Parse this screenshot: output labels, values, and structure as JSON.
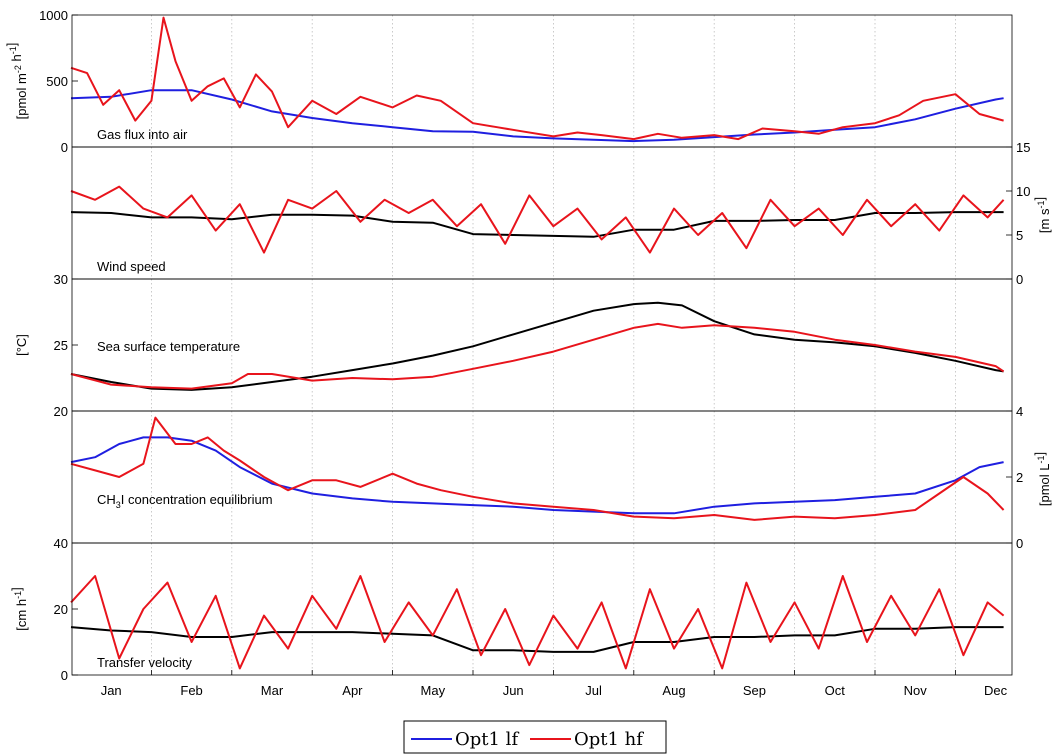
{
  "months": [
    "Jan",
    "Feb",
    "Mar",
    "Apr",
    "May",
    "Jun",
    "Jul",
    "Aug",
    "Sep",
    "Oct",
    "Nov",
    "Dec"
  ],
  "legend": {
    "lf": "Opt1 lf",
    "hf": "Opt1 hf"
  },
  "colors": {
    "lf": "#1f1fe0",
    "hf": "#e8141c",
    "black": "#000000"
  },
  "panels": [
    {
      "id": "gas-flux",
      "title": "Gas flux into air",
      "ylabel_left": "[pmol m-2 h-1]",
      "ylabel_right": "",
      "left_ticks": [
        "0",
        "500",
        "1000"
      ],
      "right_ticks": []
    },
    {
      "id": "wind-speed",
      "title": "Wind speed",
      "ylabel_left": "",
      "ylabel_right": "[m s-1]",
      "left_ticks": [],
      "right_ticks": [
        "0",
        "5",
        "10",
        "15"
      ]
    },
    {
      "id": "sst",
      "title": "Sea surface temperature",
      "ylabel_left": "[°C]",
      "ylabel_right": "",
      "left_ticks": [
        "20",
        "25",
        "30"
      ],
      "right_ticks": []
    },
    {
      "id": "ch3i",
      "title": "CH3I concentration equilibrium",
      "ylabel_left": "",
      "ylabel_right": "[pmol L-1]",
      "left_ticks": [],
      "right_ticks": [
        "0",
        "2",
        "4"
      ]
    },
    {
      "id": "transfer",
      "title": "Transfer velocity",
      "ylabel_left": "[cm h-1]",
      "ylabel_right": "",
      "left_ticks": [
        "0",
        "20",
        "40"
      ],
      "right_ticks": []
    }
  ],
  "chart_data": [
    {
      "type": "line",
      "title": "Gas flux into air",
      "ylabel": "[pmol m-2 h-1]",
      "ylim": [
        0,
        1000
      ],
      "x_unit": "month",
      "series": [
        {
          "name": "Opt1 lf",
          "color": "#1f1fe0",
          "x": [
            0.0,
            0.5,
            1.0,
            1.5,
            2.0,
            2.5,
            3.0,
            3.5,
            4.0,
            4.5,
            5.0,
            5.5,
            6.0,
            6.5,
            7.0,
            7.5,
            8.0,
            8.5,
            9.0,
            9.5,
            10.0,
            10.5,
            11.0,
            11.5,
            11.6
          ],
          "y": [
            370,
            380,
            430,
            430,
            360,
            270,
            220,
            180,
            150,
            120,
            115,
            80,
            65,
            55,
            45,
            55,
            75,
            95,
            110,
            130,
            150,
            210,
            290,
            360,
            370
          ]
        },
        {
          "name": "Opt1 hf",
          "color": "#e8141c",
          "x": [
            0.0,
            0.2,
            0.4,
            0.6,
            0.8,
            1.0,
            1.15,
            1.3,
            1.5,
            1.7,
            1.9,
            2.1,
            2.3,
            2.5,
            2.7,
            3.0,
            3.3,
            3.6,
            4.0,
            4.3,
            4.6,
            5.0,
            5.3,
            5.6,
            6.0,
            6.3,
            6.6,
            7.0,
            7.3,
            7.6,
            8.0,
            8.3,
            8.6,
            9.0,
            9.3,
            9.6,
            10.0,
            10.3,
            10.6,
            11.0,
            11.3,
            11.6
          ],
          "y": [
            600,
            560,
            320,
            430,
            200,
            350,
            980,
            650,
            350,
            460,
            520,
            300,
            550,
            420,
            150,
            350,
            250,
            380,
            300,
            390,
            350,
            180,
            150,
            120,
            80,
            110,
            90,
            60,
            100,
            70,
            90,
            60,
            140,
            120,
            100,
            150,
            180,
            240,
            350,
            400,
            250,
            200
          ]
        }
      ]
    },
    {
      "type": "line",
      "title": "Wind speed",
      "ylabel": "[m s-1]",
      "ylim": [
        0,
        15
      ],
      "x_unit": "month",
      "series": [
        {
          "name": "Opt1 lf",
          "color": "#000000",
          "x": [
            0.0,
            0.5,
            1.0,
            1.5,
            2.0,
            2.5,
            3.0,
            3.5,
            4.0,
            4.5,
            5.0,
            5.5,
            6.0,
            6.5,
            7.0,
            7.5,
            8.0,
            8.5,
            9.0,
            9.5,
            10.0,
            10.5,
            11.0,
            11.5,
            11.6
          ],
          "y": [
            7.6,
            7.5,
            7.0,
            7.0,
            6.8,
            7.3,
            7.3,
            7.2,
            6.5,
            6.4,
            5.1,
            5.0,
            4.9,
            4.8,
            5.6,
            5.6,
            6.6,
            6.6,
            6.7,
            6.7,
            7.5,
            7.5,
            7.6,
            7.6,
            7.6
          ]
        },
        {
          "name": "Opt1 hf",
          "color": "#e8141c",
          "x": [
            0.0,
            0.3,
            0.6,
            0.9,
            1.2,
            1.5,
            1.8,
            2.1,
            2.4,
            2.7,
            3.0,
            3.3,
            3.6,
            3.9,
            4.2,
            4.5,
            4.8,
            5.1,
            5.4,
            5.7,
            6.0,
            6.3,
            6.6,
            6.9,
            7.2,
            7.5,
            7.8,
            8.1,
            8.4,
            8.7,
            9.0,
            9.3,
            9.6,
            9.9,
            10.2,
            10.5,
            10.8,
            11.1,
            11.4,
            11.6
          ],
          "y": [
            10.0,
            9.0,
            10.5,
            8.0,
            7.0,
            9.5,
            5.5,
            8.5,
            3.0,
            9.0,
            8.0,
            10.0,
            6.5,
            9.0,
            7.5,
            9.0,
            6.0,
            8.5,
            4.0,
            9.5,
            6.0,
            8.0,
            4.5,
            7.0,
            3.0,
            8.0,
            5.0,
            7.5,
            3.5,
            9.0,
            6.0,
            8.0,
            5.0,
            9.0,
            6.0,
            8.5,
            5.5,
            9.5,
            7.0,
            9.0
          ]
        }
      ]
    },
    {
      "type": "line",
      "title": "Sea surface temperature",
      "ylabel": "[°C]",
      "ylim": [
        20,
        30
      ],
      "x_unit": "month",
      "series": [
        {
          "name": "Opt1 lf",
          "color": "#000000",
          "x": [
            0.0,
            0.5,
            1.0,
            1.5,
            2.0,
            2.5,
            3.0,
            3.5,
            4.0,
            4.5,
            5.0,
            5.5,
            6.0,
            6.5,
            7.0,
            7.3,
            7.6,
            8.0,
            8.5,
            9.0,
            9.5,
            10.0,
            10.5,
            11.0,
            11.5,
            11.6
          ],
          "y": [
            22.8,
            22.2,
            21.7,
            21.6,
            21.8,
            22.2,
            22.6,
            23.1,
            23.6,
            24.2,
            24.9,
            25.8,
            26.7,
            27.6,
            28.1,
            28.2,
            28.0,
            26.8,
            25.8,
            25.4,
            25.2,
            24.9,
            24.4,
            23.8,
            23.1,
            23.0
          ]
        },
        {
          "name": "Opt1 hf",
          "color": "#e8141c",
          "x": [
            0.0,
            0.5,
            1.0,
            1.5,
            2.0,
            2.2,
            2.5,
            3.0,
            3.5,
            4.0,
            4.5,
            5.0,
            5.5,
            6.0,
            6.5,
            7.0,
            7.3,
            7.6,
            8.0,
            8.5,
            9.0,
            9.5,
            10.0,
            10.5,
            11.0,
            11.5,
            11.6
          ],
          "y": [
            22.8,
            22.0,
            21.8,
            21.7,
            22.1,
            22.8,
            22.8,
            22.3,
            22.5,
            22.4,
            22.6,
            23.2,
            23.8,
            24.5,
            25.4,
            26.3,
            26.6,
            26.3,
            26.5,
            26.3,
            26.0,
            25.4,
            25.0,
            24.5,
            24.1,
            23.4,
            23.0
          ]
        }
      ]
    },
    {
      "type": "line",
      "title": "CH3I concentration equilibrium",
      "ylabel": "[pmol L-1]",
      "ylim": [
        0,
        4
      ],
      "x_unit": "month",
      "series": [
        {
          "name": "Opt1 lf",
          "color": "#1f1fe0",
          "x": [
            0.0,
            0.3,
            0.6,
            0.9,
            1.2,
            1.5,
            1.8,
            2.1,
            2.5,
            3.0,
            3.5,
            4.0,
            4.5,
            5.0,
            5.5,
            6.0,
            6.5,
            7.0,
            7.5,
            8.0,
            8.5,
            9.0,
            9.5,
            10.0,
            10.5,
            11.0,
            11.3,
            11.6
          ],
          "y": [
            2.45,
            2.6,
            3.0,
            3.2,
            3.2,
            3.1,
            2.8,
            2.3,
            1.8,
            1.5,
            1.35,
            1.25,
            1.2,
            1.15,
            1.1,
            1.0,
            0.95,
            0.9,
            0.9,
            1.1,
            1.2,
            1.25,
            1.3,
            1.4,
            1.5,
            1.9,
            2.3,
            2.45
          ]
        },
        {
          "name": "Opt1 hf",
          "color": "#e8141c",
          "x": [
            0.0,
            0.3,
            0.6,
            0.9,
            1.05,
            1.3,
            1.5,
            1.7,
            1.9,
            2.1,
            2.4,
            2.7,
            3.0,
            3.3,
            3.6,
            4.0,
            4.3,
            4.6,
            5.0,
            5.5,
            6.0,
            6.5,
            7.0,
            7.5,
            8.0,
            8.5,
            9.0,
            9.5,
            10.0,
            10.5,
            10.8,
            11.1,
            11.4,
            11.6
          ],
          "y": [
            2.4,
            2.2,
            2.0,
            2.4,
            3.8,
            3.0,
            3.0,
            3.2,
            2.8,
            2.5,
            2.0,
            1.6,
            1.9,
            1.9,
            1.7,
            2.1,
            1.8,
            1.6,
            1.4,
            1.2,
            1.1,
            1.0,
            0.8,
            0.75,
            0.85,
            0.7,
            0.8,
            0.75,
            0.85,
            1.0,
            1.5,
            2.0,
            1.5,
            1.0
          ]
        }
      ]
    },
    {
      "type": "line",
      "title": "Transfer velocity",
      "ylabel": "[cm h-1]",
      "ylim": [
        0,
        40
      ],
      "x_unit": "month",
      "series": [
        {
          "name": "Opt1 lf",
          "color": "#000000",
          "x": [
            0.0,
            0.5,
            1.0,
            1.5,
            2.0,
            2.5,
            3.0,
            3.5,
            4.0,
            4.5,
            5.0,
            5.5,
            6.0,
            6.5,
            7.0,
            7.5,
            8.0,
            8.5,
            9.0,
            9.5,
            10.0,
            10.5,
            11.0,
            11.5,
            11.6
          ],
          "y": [
            14.5,
            13.5,
            13.0,
            11.5,
            11.5,
            13.0,
            13.0,
            13.0,
            12.5,
            12.0,
            7.5,
            7.5,
            7.0,
            7.0,
            10.0,
            10.0,
            11.5,
            11.5,
            12.0,
            12.0,
            14.0,
            14.0,
            14.5,
            14.5,
            14.5
          ]
        },
        {
          "name": "Opt1 hf",
          "color": "#e8141c",
          "x": [
            0.0,
            0.3,
            0.6,
            0.9,
            1.2,
            1.5,
            1.8,
            2.1,
            2.4,
            2.7,
            3.0,
            3.3,
            3.6,
            3.9,
            4.2,
            4.5,
            4.8,
            5.1,
            5.4,
            5.7,
            6.0,
            6.3,
            6.6,
            6.9,
            7.2,
            7.5,
            7.8,
            8.1,
            8.4,
            8.7,
            9.0,
            9.3,
            9.6,
            9.9,
            10.2,
            10.5,
            10.8,
            11.1,
            11.4,
            11.6
          ],
          "y": [
            22.0,
            30.0,
            5.0,
            20.0,
            28.0,
            10.0,
            24.0,
            2.0,
            18.0,
            8.0,
            24.0,
            14.0,
            30.0,
            10.0,
            22.0,
            12.0,
            26.0,
            6.0,
            20.0,
            3.0,
            18.0,
            8.0,
            22.0,
            2.0,
            26.0,
            8.0,
            20.0,
            2.0,
            28.0,
            10.0,
            22.0,
            8.0,
            30.0,
            10.0,
            24.0,
            12.0,
            26.0,
            6.0,
            22.0,
            18.0
          ]
        }
      ]
    }
  ]
}
